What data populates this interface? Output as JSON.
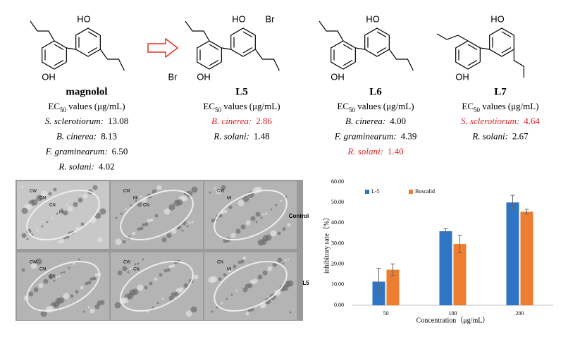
{
  "ec50_label": {
    "prefix": "EC",
    "sub": "50",
    "suffix": " values (μg/mL)"
  },
  "compounds": [
    {
      "name": "magnolol",
      "atoms": [
        "HO",
        "OH"
      ],
      "entries": [
        {
          "species": "S. sclerotiorum:",
          "value": "13.08",
          "highlight": false
        },
        {
          "species": "B. cinerea:",
          "value": "8.13",
          "highlight": false
        },
        {
          "species": "F. graminearum:",
          "value": "6.50",
          "highlight": false
        },
        {
          "species": "R. solani:",
          "value": "4.02",
          "highlight": false
        }
      ]
    },
    {
      "name": "L5",
      "atoms": [
        "HO",
        "OH",
        "Br",
        "Br"
      ],
      "entries": [
        {
          "species": "B. cinerea:",
          "value": "2.86",
          "highlight": true
        },
        {
          "species": "R. solani:",
          "value": "1.48",
          "highlight": false
        }
      ]
    },
    {
      "name": "L6",
      "atoms": [
        "HO",
        "OH"
      ],
      "entries": [
        {
          "species": "B. cinerea:",
          "value": "4.00",
          "highlight": false
        },
        {
          "species": "F. graminearum:",
          "value": "4.39",
          "highlight": false
        },
        {
          "species": "R. solani:",
          "value": "1.40",
          "highlight": true
        }
      ]
    },
    {
      "name": "L7",
      "atoms": [
        "HO",
        "OH"
      ],
      "entries": [
        {
          "species": "S. sclerotiorum:",
          "value": "4.64",
          "highlight": true
        },
        {
          "species": "R. solani:",
          "value": "2.67",
          "highlight": false
        }
      ]
    }
  ],
  "micrographs": {
    "row_labels": [
      "Control",
      "L5"
    ],
    "panels": [
      [
        "CW",
        "CM",
        "CN",
        "Mi"
      ],
      [
        "CM",
        "Mi",
        "CN"
      ],
      [
        "CW",
        "Mi"
      ],
      [
        "CW",
        "CM",
        "CN"
      ],
      [
        "CW",
        "CN"
      ],
      [
        "CN",
        "Mi"
      ]
    ]
  },
  "chart_data": {
    "type": "bar",
    "x_label": "Concentration（μg/mL）",
    "y_label": "inhibitory rate（%）",
    "categories": [
      "50",
      "100",
      "200"
    ],
    "series": [
      {
        "name": "L-5",
        "color": "#2e75c5",
        "values": [
          11.5,
          36,
          50
        ],
        "errors": [
          6.5,
          1.2,
          3.5
        ]
      },
      {
        "name": "Boscalid",
        "color": "#ed7d31",
        "values": [
          17.3,
          29.8,
          45.5
        ],
        "errors": [
          2.8,
          4.2,
          1.2
        ]
      }
    ],
    "ylim": [
      0,
      60
    ],
    "yticks": [
      {
        "value": 0,
        "label": "0.00"
      },
      {
        "value": 10,
        "label": "10.00"
      },
      {
        "value": 20,
        "label": "20.00"
      },
      {
        "value": 30,
        "label": "30.00"
      },
      {
        "value": 40,
        "label": "40.00"
      },
      {
        "value": 50,
        "label": "50.00"
      },
      {
        "value": 60,
        "label": "60.00"
      }
    ],
    "grid": false,
    "legend": "top-left"
  }
}
